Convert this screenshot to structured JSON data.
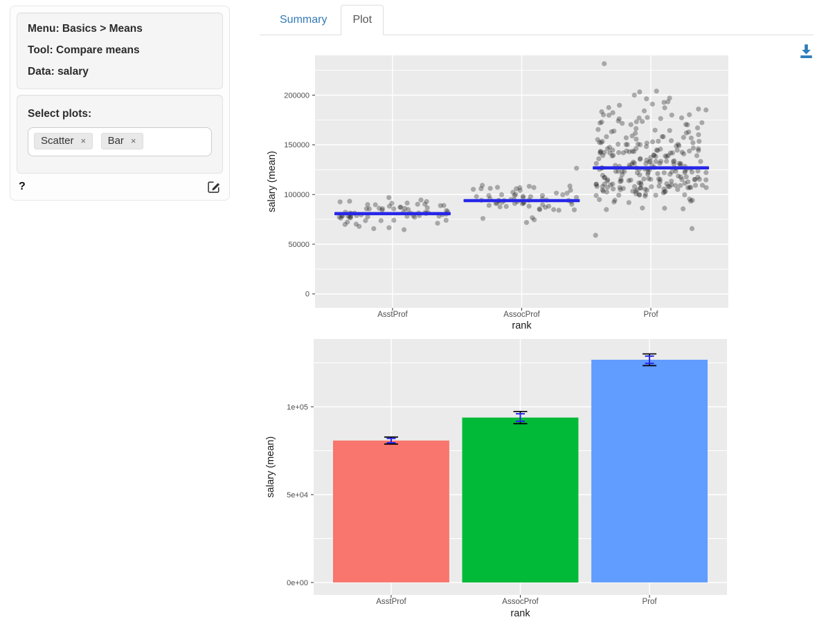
{
  "sidebar": {
    "info_lines": [
      "Menu: Basics > Means",
      "Tool: Compare means",
      "Data: salary"
    ],
    "select_plots_label": "Select plots:",
    "selected_plots": [
      {
        "label": "Scatter"
      },
      {
        "label": "Bar"
      }
    ],
    "remove_symbol": "×",
    "help_label": "?"
  },
  "tabs": [
    {
      "label": "Summary",
      "active": false
    },
    {
      "label": "Plot",
      "active": true
    }
  ],
  "icons": {
    "download": "download-icon",
    "edit": "pencil-square-icon",
    "help": "question-mark"
  },
  "colors": {
    "link_blue": "#337ab7",
    "download_blue": "#2f7cb9",
    "panel_bg": "#ebebeb",
    "grid": "#ffffff",
    "axis_text": "#4d4d4d",
    "axis_title": "#1a1a1a",
    "mean_line": "#2626e8",
    "point": "#1f1f1f",
    "error_outer": "#000000",
    "error_inner": "#2626e8"
  },
  "chart_data": [
    {
      "type": "scatter",
      "variant": "jittered-points-by-group-with-mean-lines",
      "xlabel": "rank",
      "ylabel": "salary (mean)",
      "categories": [
        "AsstProf",
        "AssocProf",
        "Prof"
      ],
      "groups": [
        {
          "name": "AsstProf",
          "n": 67,
          "mean": 80776,
          "sd": 7800,
          "min": 63100,
          "max": 97032,
          "skew_hi": 1.0,
          "skew_lo": 1.0,
          "extra_points": []
        },
        {
          "name": "AssocProf",
          "n": 63,
          "mean": 93876,
          "sd": 9600,
          "min": 62884,
          "max": 110500,
          "skew_hi": 1.1,
          "skew_lo": 0.95,
          "extra_points": [
            126431
          ]
        },
        {
          "name": "Prof",
          "n": 262,
          "mean": 126772,
          "sd": 23000,
          "min": 57800,
          "max": 205500,
          "skew_hi": 1.35,
          "skew_lo": 0.8,
          "extra_points": [
            231545,
            204000,
            186000,
            59000
          ]
        }
      ],
      "mean_values": [
        80776,
        93876,
        126772
      ],
      "yticks": [
        0,
        50000,
        100000,
        150000,
        200000
      ],
      "ytick_labels": [
        "0",
        "50000",
        "100000",
        "150000",
        "200000"
      ],
      "ylim": [
        -14000,
        240000
      ],
      "point_radius": 3.6,
      "point_opacity": 0.33,
      "legend": "none",
      "grid": true
    },
    {
      "type": "bar",
      "xlabel": "rank",
      "ylabel": "salary (mean)",
      "categories": [
        "AsstProf",
        "AssocProf",
        "Prof"
      ],
      "values": [
        80776,
        93876,
        126772
      ],
      "bar_colors": [
        "#F8766D",
        "#00BA38",
        "#619CFF"
      ],
      "error_outer": [
        1996,
        3455,
        3346
      ],
      "error_inner": [
        1240,
        2150,
        2080
      ],
      "yticks": [
        0,
        50000,
        100000
      ],
      "ytick_labels": [
        "0e+00",
        "5e+04",
        "1e+05"
      ],
      "ylim": [
        -7100,
        138600
      ],
      "legend": "none",
      "grid": true
    }
  ]
}
